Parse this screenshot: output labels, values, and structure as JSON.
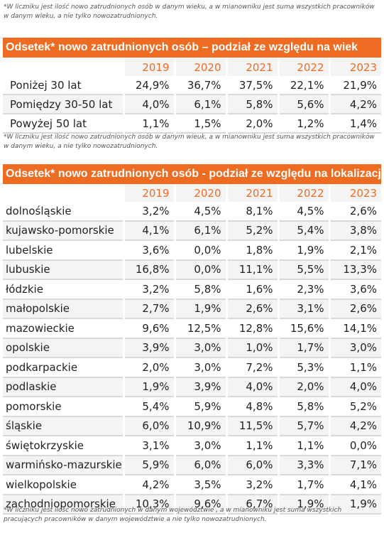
{
  "top_note": "*W liczniku jest ilość nowo zatrudnionych osób w danym wieku, a w mianowniku jest suma wszystkich pracowników w danym wieku, a nie tylko nowozatrudnionych.",
  "table_age": {
    "title": "Odsetek* nowo zatrudnionych osób – podział ze względu na wiek",
    "years": [
      "2019",
      "2020",
      "2021",
      "2022",
      "2023"
    ],
    "rows": [
      {
        "label": "Poniżej 30 lat",
        "values": [
          "24,9%",
          "36,7%",
          "37,5%",
          "22,1%",
          "21,9%"
        ]
      },
      {
        "label": "Pomiędzy 30-50 lat",
        "values": [
          "4,0%",
          "6,1%",
          "5,8%",
          "5,6%",
          "4,2%"
        ]
      },
      {
        "label": "Powyżej 50 lat",
        "values": [
          "1,1%",
          "1,5%",
          "2,0%",
          "1,2%",
          "1,4%"
        ]
      }
    ],
    "note": "*W liczniku jest ilość nowo zatrudnionych osób w danym wieuk, a w mianowniku jest suma wszystkich pracowników w danym wieku, a nie tylko nowozatrudnionych."
  },
  "table_region": {
    "title": "Odsetek* nowo zatrudnionych osób - podział ze względu na lokalizacje",
    "years": [
      "2019",
      "2020",
      "2021",
      "2022",
      "2023"
    ],
    "rows": [
      {
        "label": "dolnośląskie",
        "values": [
          "3,2%",
          "4,5%",
          "8,1%",
          "4,5%",
          "2,6%"
        ]
      },
      {
        "label": "kujawsko-pomorskie",
        "values": [
          "4,1%",
          "6,1%",
          "5,2%",
          "5,4%",
          "3,8%"
        ]
      },
      {
        "label": "lubelskie",
        "values": [
          "3,6%",
          "0,0%",
          "1,8%",
          "1,9%",
          "2,1%"
        ]
      },
      {
        "label": "lubuskie",
        "values": [
          "16,8%",
          "0,0%",
          "11,1%",
          "5,5%",
          "13,3%"
        ]
      },
      {
        "label": "łódzkie",
        "values": [
          "3,2%",
          "5,8%",
          "1,6%",
          "2,3%",
          "3,6%"
        ]
      },
      {
        "label": "małopolskie",
        "values": [
          "2,7%",
          "1,9%",
          "2,6%",
          "3,1%",
          "2,6%"
        ]
      },
      {
        "label": "mazowieckie",
        "values": [
          "9,6%",
          "12,5%",
          "12,8%",
          "15,6%",
          "14,1%"
        ]
      },
      {
        "label": "opolskie",
        "values": [
          "3,9%",
          "3,0%",
          "1,0%",
          "1,7%",
          "3,0%"
        ]
      },
      {
        "label": "podkarpackie",
        "values": [
          "2,0%",
          "3,0%",
          "7,2%",
          "5,3%",
          "1,1%"
        ]
      },
      {
        "label": "podlaskie",
        "values": [
          "1,9%",
          "3,9%",
          "4,0%",
          "2,0%",
          "4,0%"
        ]
      },
      {
        "label": "pomorskie",
        "values": [
          "5,4%",
          "5,9%",
          "4,8%",
          "5,8%",
          "5,2%"
        ]
      },
      {
        "label": "śląskie",
        "values": [
          "6,0%",
          "10,9%",
          "11,5%",
          "5,7%",
          "4,2%"
        ]
      },
      {
        "label": "świętokrzyskie",
        "values": [
          "3,1%",
          "3,0%",
          "1,1%",
          "1,1%",
          "0,0%"
        ]
      },
      {
        "label": "warmińsko-mazurskie",
        "values": [
          "5,9%",
          "6,0%",
          "6,0%",
          "3,3%",
          "7,1%"
        ]
      },
      {
        "label": "wielkopolskie",
        "values": [
          "4,2%",
          "3,5%",
          "3,2%",
          "1,7%",
          "4,1%"
        ]
      },
      {
        "label": "zachodniopomorskie",
        "values": [
          "10,3%",
          "9,6%",
          "6,7%",
          "1,9%",
          "1,9%"
        ]
      }
    ],
    "note": "*W liczniku jest ilość nowo zatrudnionych w danym województwie , a w mianowniku jest suma wszystkich pracujących pracowników w danym województwie a nie tylko nowozatrudnionych."
  },
  "colors": {
    "accent": "#ee6c22",
    "stripe": "#f4f4f4",
    "rule": "#d9d9d9"
  }
}
